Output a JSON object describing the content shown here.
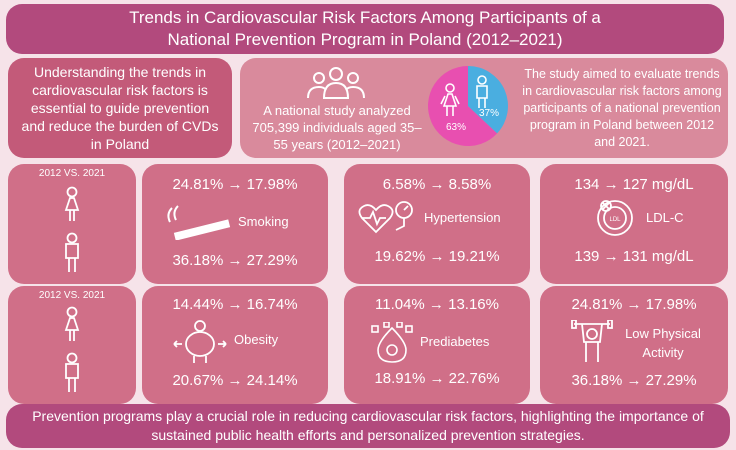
{
  "title": {
    "line1": "Trends in Cardiovascular Risk Factors Among Participants of a",
    "line2": "National Prevention Program in Poland (2012–2021)"
  },
  "intro": {
    "left": "Understanding the trends in cardiovascular risk factors is essential to guide prevention and reduce the burden of CVDs in Poland",
    "study": "A national study analyzed 705,399 individuals aged 35–55 years (2012–2021)",
    "pie": {
      "female_pct": "63%",
      "male_pct": "37%",
      "female_value": 63,
      "male_value": 37,
      "female_color": "#e84fb0",
      "male_color": "#4aaee0"
    },
    "right": "The study aimed to evaluate trends in cardiovascular risk factors among participants of a national prevention program in Poland between 2012 and 2021."
  },
  "rows": [
    {
      "compare_label": "2012 VS. 2021",
      "cards": [
        {
          "name": "Smoking",
          "female": "24.81% → 17.98%",
          "male": "36.18% → 27.29%",
          "icon": "cigarette-icon"
        },
        {
          "name": "Hypertension",
          "female": "6.58% → 8.58%",
          "male": "19.62% → 19.21%",
          "icon": "blood-pressure-icon"
        },
        {
          "name": "LDL-C",
          "female": "134 → 127 mg/dL",
          "male": "139 → 131 mg/dL",
          "icon": "cholesterol-icon"
        }
      ]
    },
    {
      "compare_label": "2012 VS. 2021",
      "cards": [
        {
          "name": "Obesity",
          "female": "14.44% → 16.74%",
          "male": "20.67% → 24.14%",
          "icon": "obesity-icon"
        },
        {
          "name": "Prediabetes",
          "female": "11.04% → 13.16%",
          "male": "18.91% → 22.76%",
          "icon": "glucose-icon"
        },
        {
          "name": "Low Physical Activity",
          "female": "24.81% → 17.98%",
          "male": "36.18% → 27.29%",
          "icon": "exercise-icon"
        }
      ]
    }
  ],
  "conclusion": {
    "line1": "Prevention programs play a crucial role in reducing cardiovascular risk factors, highlighting the importance of",
    "line2": "sustained public health efforts and personalized prevention strategies."
  }
}
